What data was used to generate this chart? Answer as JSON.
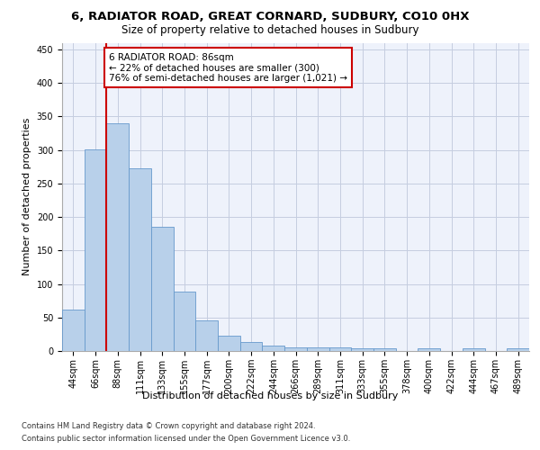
{
  "title1": "6, RADIATOR ROAD, GREAT CORNARD, SUDBURY, CO10 0HX",
  "title2": "Size of property relative to detached houses in Sudbury",
  "xlabel": "Distribution of detached houses by size in Sudbury",
  "ylabel": "Number of detached properties",
  "bar_labels": [
    "44sqm",
    "66sqm",
    "88sqm",
    "111sqm",
    "133sqm",
    "155sqm",
    "177sqm",
    "200sqm",
    "222sqm",
    "244sqm",
    "266sqm",
    "289sqm",
    "311sqm",
    "333sqm",
    "355sqm",
    "378sqm",
    "400sqm",
    "422sqm",
    "444sqm",
    "467sqm",
    "489sqm"
  ],
  "bar_values": [
    62,
    301,
    340,
    272,
    185,
    89,
    46,
    23,
    13,
    8,
    5,
    5,
    5,
    4,
    4,
    0,
    4,
    0,
    4,
    0,
    4
  ],
  "bar_color": "#b8d0ea",
  "bar_edgecolor": "#6699cc",
  "vline_x": 1.5,
  "vline_color": "#cc0000",
  "annotation_text": "6 RADIATOR ROAD: 86sqm\n← 22% of detached houses are smaller (300)\n76% of semi-detached houses are larger (1,021) →",
  "annotation_box_facecolor": "#ffffff",
  "annotation_box_edgecolor": "#cc0000",
  "ylim": [
    0,
    460
  ],
  "yticks": [
    0,
    50,
    100,
    150,
    200,
    250,
    300,
    350,
    400,
    450
  ],
  "footnote1": "Contains HM Land Registry data © Crown copyright and database right 2024.",
  "footnote2": "Contains public sector information licensed under the Open Government Licence v3.0.",
  "bg_color": "#eef2fb",
  "grid_color": "#c5cde0",
  "title1_fontsize": 9.5,
  "title2_fontsize": 8.5,
  "ylabel_fontsize": 8,
  "xlabel_fontsize": 8,
  "tick_fontsize": 7,
  "annot_fontsize": 7.5,
  "footnote_fontsize": 6.0
}
